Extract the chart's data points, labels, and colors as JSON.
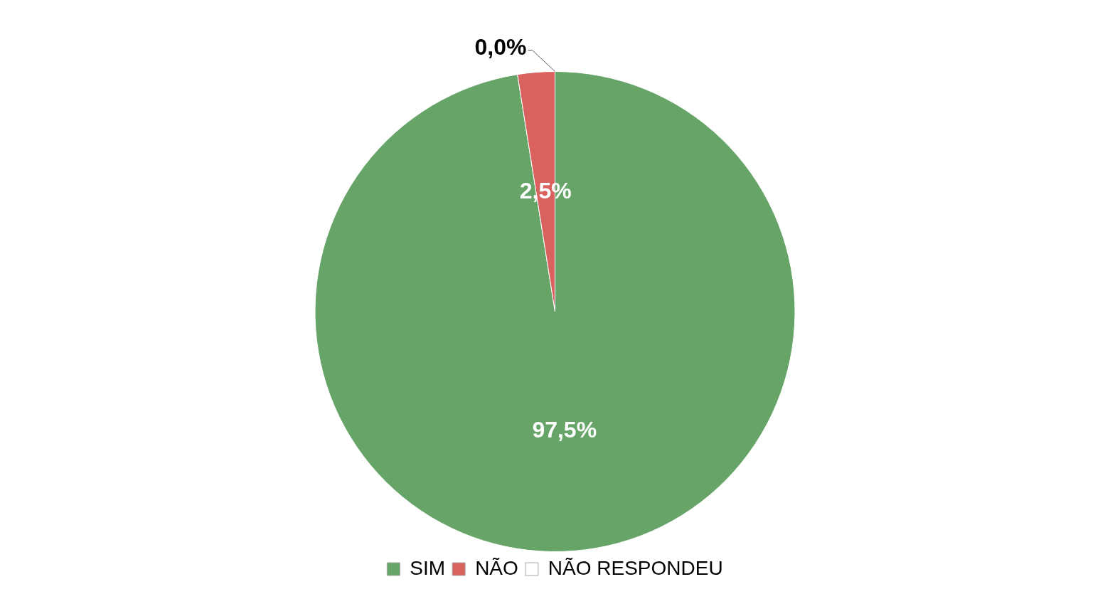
{
  "chart_data": {
    "type": "pie",
    "categories": [
      "SIM",
      "NÃO",
      "NÃO RESPONDEU"
    ],
    "values": [
      97.5,
      2.5,
      0
    ],
    "colors": [
      "#66a467",
      "#d9625f",
      "#ffffff"
    ],
    "value_labels": [
      "97,5%",
      "2,5%",
      "0,0%"
    ],
    "legend": "bottom"
  }
}
